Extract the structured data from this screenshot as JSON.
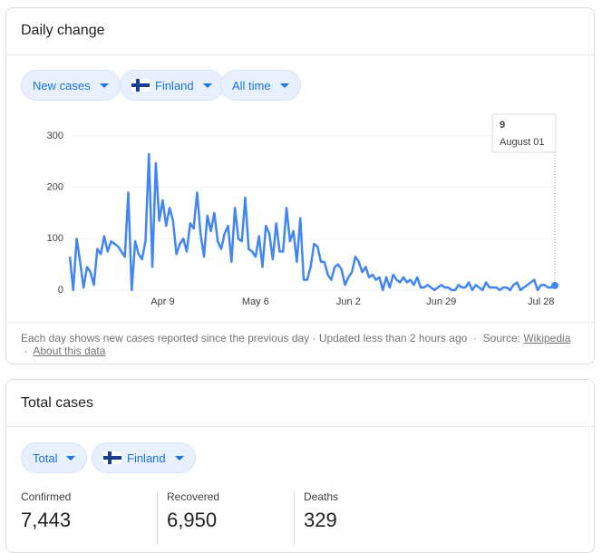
{
  "daily_card": {
    "title": "Daily change",
    "chips": [
      "New cases",
      "Finland",
      "All time"
    ],
    "footer": {
      "note": "Each day shows new cases reported since the previous day · Updated less than 2 hours ago",
      "sep1": "·",
      "source_label": "Source:",
      "source_link": "Wikipedia",
      "sep2": "·",
      "about_link": "About this data"
    }
  },
  "chart_data": {
    "type": "line",
    "color": "#4285f4",
    "grid": true,
    "ylim": [
      0,
      300
    ],
    "yticks": [
      0,
      100,
      200,
      300
    ],
    "tooltip_label": "August 01",
    "categories": [
      null,
      null,
      null,
      null,
      null,
      null,
      null,
      null,
      null,
      null,
      null,
      null,
      null,
      null,
      null,
      null,
      null,
      null,
      null,
      null,
      null,
      null,
      null,
      null,
      null,
      null,
      null,
      "Apr 9",
      null,
      null,
      null,
      null,
      null,
      null,
      null,
      null,
      null,
      null,
      null,
      null,
      null,
      null,
      null,
      null,
      null,
      null,
      null,
      null,
      null,
      null,
      null,
      null,
      null,
      null,
      "May 6",
      null,
      null,
      null,
      null,
      null,
      null,
      null,
      null,
      null,
      null,
      null,
      null,
      null,
      null,
      null,
      null,
      null,
      null,
      null,
      null,
      null,
      null,
      null,
      null,
      null,
      null,
      "Jun 2",
      null,
      null,
      null,
      null,
      null,
      null,
      null,
      null,
      null,
      null,
      null,
      null,
      null,
      null,
      null,
      null,
      null,
      null,
      null,
      null,
      null,
      null,
      null,
      null,
      null,
      null,
      "Jun 29",
      null,
      null,
      null,
      null,
      null,
      null,
      null,
      null,
      null,
      null,
      null,
      null,
      null,
      null,
      null,
      null,
      null,
      null,
      null,
      null,
      null,
      null,
      null,
      null,
      null,
      null,
      null,
      null,
      "Jul 28",
      null,
      null,
      null,
      null
    ],
    "values": [
      65,
      0,
      100,
      55,
      5,
      45,
      35,
      10,
      80,
      70,
      105,
      75,
      95,
      90,
      85,
      75,
      65,
      190,
      0,
      95,
      70,
      60,
      95,
      265,
      45,
      247,
      135,
      175,
      125,
      160,
      135,
      70,
      90,
      100,
      75,
      130,
      120,
      190,
      110,
      65,
      145,
      115,
      150,
      95,
      80,
      110,
      125,
      55,
      160,
      100,
      95,
      180,
      80,
      75,
      65,
      105,
      45,
      125,
      110,
      60,
      130,
      75,
      75,
      160,
      95,
      115,
      55,
      140,
      20,
      20,
      45,
      90,
      85,
      55,
      55,
      30,
      20,
      45,
      50,
      40,
      10,
      25,
      35,
      65,
      55,
      35,
      45,
      25,
      30,
      20,
      25,
      0,
      25,
      5,
      30,
      20,
      15,
      25,
      15,
      20,
      10,
      25,
      5,
      5,
      10,
      5,
      0,
      5,
      10,
      5,
      5,
      0,
      0,
      10,
      5,
      5,
      15,
      0,
      10,
      5,
      0,
      15,
      5,
      5,
      5,
      0,
      5,
      5,
      0,
      10,
      15,
      0,
      5,
      10,
      15,
      20,
      0,
      10,
      10,
      5,
      5,
      9
    ]
  },
  "total_card": {
    "title": "Total cases",
    "chips": [
      "Total",
      "Finland"
    ],
    "stats": [
      {
        "label": "Confirmed",
        "value": "7,443"
      },
      {
        "label": "Recovered",
        "value": "6,950"
      },
      {
        "label": "Deaths",
        "value": "329"
      }
    ]
  }
}
